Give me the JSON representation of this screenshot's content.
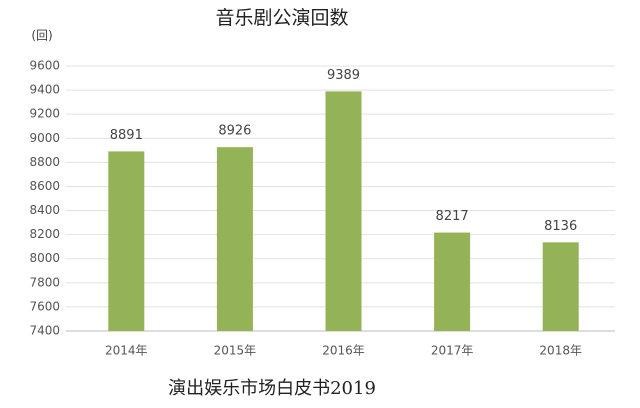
{
  "chart_data": {
    "type": "bar",
    "title": "音乐剧公演回数",
    "ylabel": "(回)",
    "categories": [
      "2014年",
      "2015年",
      "2016年",
      "2017年",
      "2018年"
    ],
    "values": [
      8891,
      8926,
      9389,
      8217,
      8136
    ],
    "color": "#94b356",
    "ylim": [
      7400,
      9600
    ],
    "yticks": [
      7400,
      7600,
      7800,
      8000,
      8200,
      8400,
      8600,
      8800,
      9000,
      9200,
      9400,
      9600
    ],
    "grid": true,
    "source": "演出娱乐市场白皮书2019"
  }
}
